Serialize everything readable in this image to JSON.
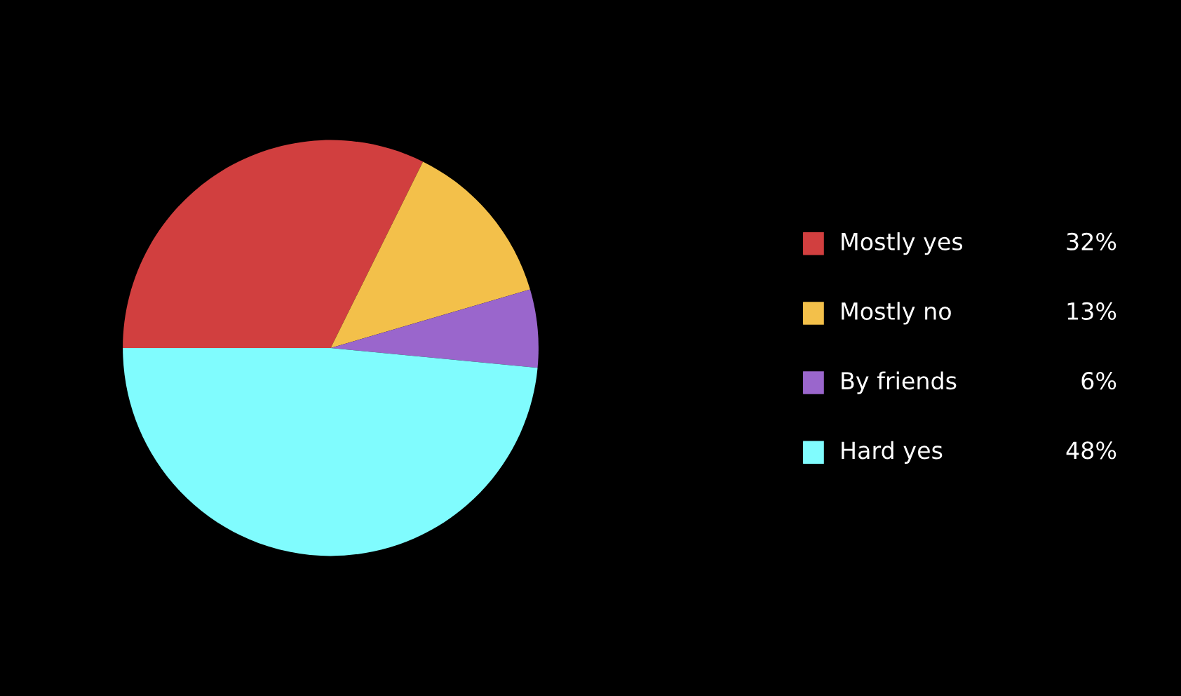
{
  "chart_data": {
    "type": "pie",
    "categories": [
      "Mostly yes",
      "Mostly no",
      "By friends",
      "Hard yes"
    ],
    "values": [
      32,
      13,
      6,
      48
    ],
    "colors": [
      "#d13f3f",
      "#f3c04a",
      "#9a66cc",
      "#80fcfe"
    ],
    "value_labels": [
      "32%",
      "13%",
      "6%",
      "48%"
    ],
    "legend": "right"
  }
}
